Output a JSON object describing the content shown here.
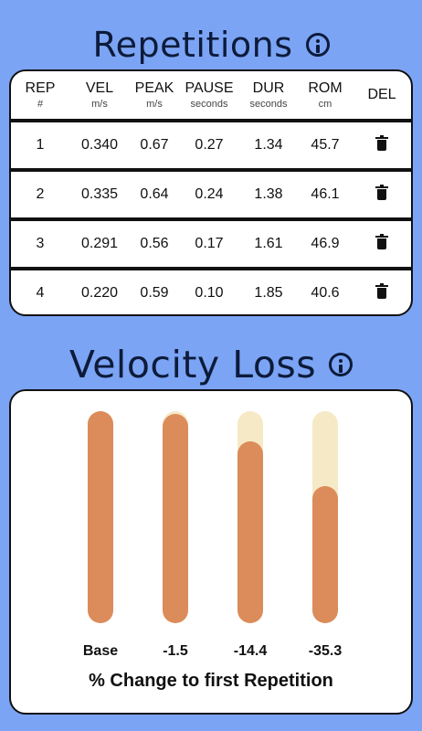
{
  "repetitions": {
    "title": "Repetitions",
    "headers": [
      {
        "label": "REP",
        "unit": "#"
      },
      {
        "label": "VEL",
        "unit": "m/s"
      },
      {
        "label": "PEAK",
        "unit": "m/s"
      },
      {
        "label": "PAUSE",
        "unit": "seconds"
      },
      {
        "label": "DUR",
        "unit": "seconds"
      },
      {
        "label": "ROM",
        "unit": "cm"
      },
      {
        "label": "DEL",
        "unit": ""
      }
    ],
    "rows": [
      {
        "rep": "1",
        "vel": "0.340",
        "peak": "0.67",
        "pause": "0.27",
        "dur": "1.34",
        "rom": "45.7"
      },
      {
        "rep": "2",
        "vel": "0.335",
        "peak": "0.64",
        "pause": "0.24",
        "dur": "1.38",
        "rom": "46.1"
      },
      {
        "rep": "3",
        "vel": "0.291",
        "peak": "0.56",
        "pause": "0.17",
        "dur": "1.61",
        "rom": "46.9"
      },
      {
        "rep": "4",
        "vel": "0.220",
        "peak": "0.59",
        "pause": "0.10",
        "dur": "1.85",
        "rom": "40.6"
      }
    ],
    "delete_icon": "trash-icon"
  },
  "velocity_loss": {
    "title": "Velocity Loss",
    "bars": [
      {
        "label": "Base",
        "fill_fraction": 1.0
      },
      {
        "label": "-1.5",
        "fill_fraction": 0.985
      },
      {
        "label": "-14.4",
        "fill_fraction": 0.856
      },
      {
        "label": "-35.3",
        "fill_fraction": 0.647
      }
    ],
    "caption": "% Change to first Repetition"
  },
  "colors": {
    "background": "#7ba4f5",
    "bar_fill": "#db8c5a",
    "bar_track": "#f5e9c6"
  }
}
